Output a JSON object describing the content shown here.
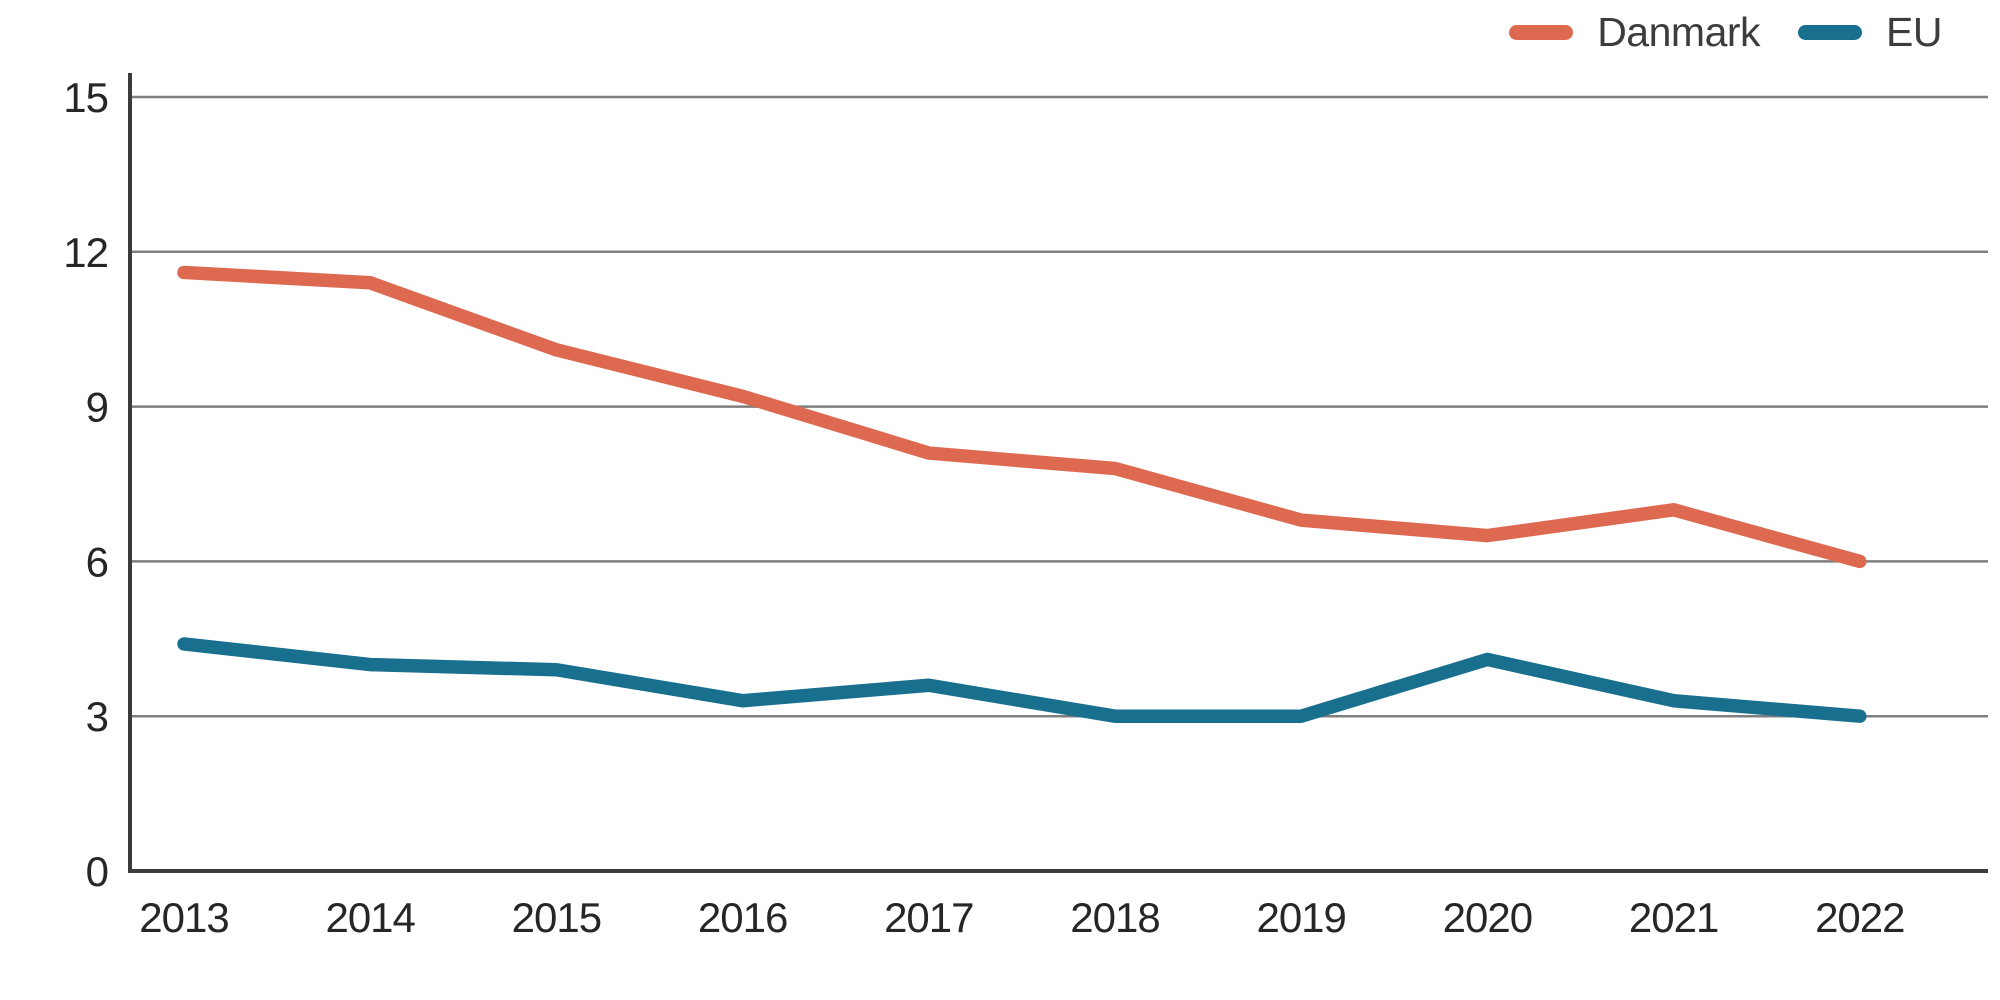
{
  "chart": {
    "background": "#ffffff",
    "legend": [
      {
        "label": "Danmark",
        "color": "#dd6950"
      },
      {
        "label": "EU",
        "color": "#186f8e"
      }
    ]
  },
  "chart_data": {
    "type": "line",
    "title": "",
    "xlabel": "",
    "ylabel": "",
    "x": [
      2013,
      2014,
      2015,
      2016,
      2017,
      2018,
      2019,
      2020,
      2021,
      2022
    ],
    "series": [
      {
        "name": "Danmark",
        "color": "#dd6950",
        "values": [
          11.6,
          11.4,
          10.1,
          9.2,
          8.1,
          7.8,
          6.8,
          6.5,
          7.0,
          6.0
        ]
      },
      {
        "name": "EU",
        "color": "#186f8e",
        "values": [
          4.4,
          4.0,
          3.9,
          3.3,
          3.6,
          3.0,
          3.0,
          4.1,
          3.3,
          3.0
        ]
      }
    ],
    "ylim": [
      0,
      15
    ],
    "yticks": [
      0,
      3,
      6,
      9,
      12,
      15
    ],
    "grid": true,
    "legend_position": "top-right",
    "grid_color": "#7f7f7f",
    "axis_color": "#3b3b3b",
    "tick_label_color": "#262626"
  }
}
